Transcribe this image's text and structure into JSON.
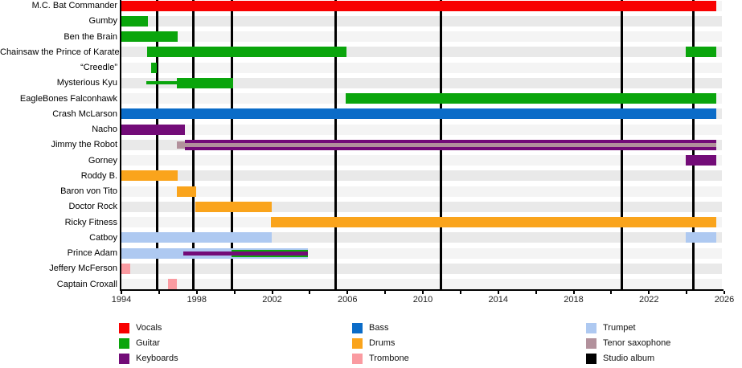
{
  "chart_data": {
    "type": "timeline",
    "variant": "band-member-gantt",
    "title": "",
    "x_axis": {
      "min": 1994,
      "max": 2026,
      "tick_interval": 2,
      "label_interval": 4,
      "tick_labels": [
        "1994",
        "1998",
        "2002",
        "2006",
        "2010",
        "2014",
        "2018",
        "2022",
        "2026"
      ],
      "grid": false
    },
    "present": 2025.57,
    "colors": {
      "vocals": "#f80000",
      "guitar": "#0aa50c",
      "keyboards": "#730c78",
      "bass": "#0b6cc8",
      "drums": "#faa41c",
      "trombone": "#fa9ba1",
      "trumpet": "#aec9f1",
      "tenor_saxophone": "#b2919c",
      "studio_album": "#000000"
    },
    "row_stripe_colors": {
      "odd": "#e9e9e9",
      "even": "#f4f4f4"
    },
    "album_release_lines": [
      1995.88,
      1997.82,
      1999.85,
      2005.39,
      2010.98,
      2020.58,
      2024.34
    ],
    "members": [
      {
        "name": "M.C. Bat Commander",
        "bars": [
          {
            "instrument": "vocals",
            "from": 1994.0,
            "to": 2025.57,
            "size": "full"
          }
        ]
      },
      {
        "name": "Gumby",
        "bars": [
          {
            "instrument": "guitar",
            "from": 1994.0,
            "to": 1995.41,
            "size": "full"
          }
        ]
      },
      {
        "name": "Ben the Brain",
        "bars": [
          {
            "instrument": "guitar",
            "from": 1994.0,
            "to": 1997.0,
            "size": "full"
          }
        ]
      },
      {
        "name": "Chainsaw the Prince of Karate",
        "bars": [
          {
            "instrument": "guitar",
            "from": 1995.37,
            "to": 2005.95,
            "size": "full"
          },
          {
            "instrument": "guitar",
            "from": 2023.95,
            "to": 2025.57,
            "size": "full"
          }
        ]
      },
      {
        "name": "“Creedle”",
        "bars": [
          {
            "instrument": "guitar",
            "from": 1995.58,
            "to": 1995.88,
            "size": "full"
          }
        ]
      },
      {
        "name": "Mysterious Kyu",
        "bars": [
          {
            "instrument": "guitar",
            "from": 1995.32,
            "to": 1996.94,
            "size": "line"
          },
          {
            "instrument": "guitar",
            "from": 1996.94,
            "to": 1999.93,
            "size": "full"
          }
        ]
      },
      {
        "name": "EagleBones Falconhawk",
        "bars": [
          {
            "instrument": "guitar",
            "from": 2005.9,
            "to": 2025.57,
            "size": "full"
          }
        ]
      },
      {
        "name": "Crash McLarson",
        "bars": [
          {
            "instrument": "bass",
            "from": 1994.0,
            "to": 2025.57,
            "size": "full"
          }
        ]
      },
      {
        "name": "Nacho",
        "bars": [
          {
            "instrument": "keyboards",
            "from": 1994.0,
            "to": 1997.37,
            "size": "full"
          }
        ]
      },
      {
        "name": "Jimmy the Robot",
        "bars": [
          {
            "instrument": "keyboards",
            "from": 1997.37,
            "to": 2025.57,
            "size": "full"
          },
          {
            "instrument": "tenor_saxophone",
            "from": 1996.94,
            "to": 1997.37,
            "size": "mid"
          },
          {
            "instrument": "tenor_saxophone",
            "from": 1997.37,
            "to": 2025.57,
            "size": "thin"
          }
        ]
      },
      {
        "name": "Gorney",
        "bars": [
          {
            "instrument": "keyboards",
            "from": 2023.95,
            "to": 2025.57,
            "size": "full"
          }
        ]
      },
      {
        "name": "Roddy B.",
        "bars": [
          {
            "instrument": "drums",
            "from": 1994.0,
            "to": 1997.0,
            "size": "full"
          }
        ]
      },
      {
        "name": "Baron von Tito",
        "bars": [
          {
            "instrument": "drums",
            "from": 1996.94,
            "to": 1997.97,
            "size": "full"
          }
        ]
      },
      {
        "name": "Doctor Rock",
        "bars": [
          {
            "instrument": "drums",
            "from": 1997.92,
            "to": 2001.98,
            "size": "full"
          }
        ]
      },
      {
        "name": "Ricky Fitness",
        "bars": [
          {
            "instrument": "drums",
            "from": 2001.94,
            "to": 2025.57,
            "size": "full"
          }
        ]
      },
      {
        "name": "Catboy",
        "bars": [
          {
            "instrument": "trumpet",
            "from": 1994.0,
            "to": 2001.98,
            "size": "full"
          },
          {
            "instrument": "trumpet",
            "from": 2023.95,
            "to": 2025.57,
            "size": "full"
          }
        ]
      },
      {
        "name": "Prince Adam",
        "bars": [
          {
            "instrument": "trumpet",
            "from": 1994.0,
            "to": 2003.9,
            "size": "full"
          },
          {
            "instrument": "guitar",
            "from": 1999.85,
            "to": 2003.9,
            "size": "mid"
          },
          {
            "instrument": "keyboards",
            "from": 1997.29,
            "to": 2003.9,
            "size": "thin"
          }
        ]
      },
      {
        "name": "Jeffery McFerson",
        "bars": [
          {
            "instrument": "trombone",
            "from": 1994.0,
            "to": 1994.47,
            "size": "full"
          }
        ]
      },
      {
        "name": "Captain Croxall",
        "bars": [
          {
            "instrument": "trombone",
            "from": 1996.47,
            "to": 1996.94,
            "size": "full"
          }
        ]
      }
    ],
    "legend": {
      "columns": [
        [
          {
            "label": "Vocals",
            "key": "vocals"
          },
          {
            "label": "Guitar",
            "key": "guitar"
          },
          {
            "label": "Keyboards",
            "key": "keyboards"
          }
        ],
        [
          {
            "label": "Bass",
            "key": "bass"
          },
          {
            "label": "Drums",
            "key": "drums"
          },
          {
            "label": "Trombone",
            "key": "trombone"
          }
        ],
        [
          {
            "label": "Trumpet",
            "key": "trumpet"
          },
          {
            "label": "Tenor saxophone",
            "key": "tenor_saxophone"
          },
          {
            "label": "Studio album",
            "key": "studio_album"
          }
        ]
      ],
      "position": "bottom"
    }
  }
}
